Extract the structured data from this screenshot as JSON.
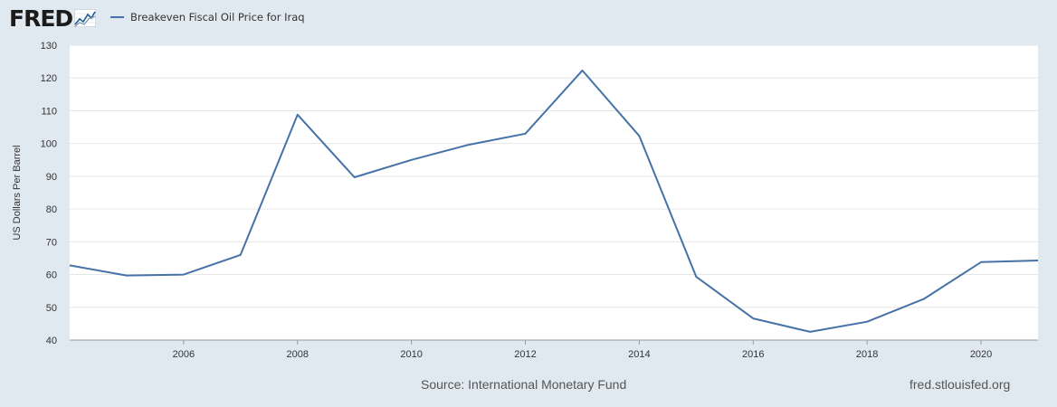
{
  "brand": {
    "logo_text": "FRED",
    "logo_icon": "fred-graph-icon"
  },
  "footer": {
    "source": "Source: International Monetary Fund",
    "url": "fred.stlouisfed.org"
  },
  "colors": {
    "background": "#e1e9f0",
    "plot_background": "#ffffff",
    "series": "#4572a7",
    "grid": "#e6e6e6",
    "text": "#333333"
  },
  "chart_data": {
    "type": "line",
    "title": "",
    "xlabel": "",
    "ylabel": "US Dollars Per Barrel",
    "xlim": [
      2004,
      2021
    ],
    "ylim": [
      40,
      130
    ],
    "yticks": [
      40,
      50,
      60,
      70,
      80,
      90,
      100,
      110,
      120,
      130
    ],
    "xticks": [
      2006,
      2008,
      2010,
      2012,
      2014,
      2016,
      2018,
      2020
    ],
    "grid": true,
    "legend_position": "top-left",
    "series": [
      {
        "name": "Breakeven Fiscal Oil Price for Iraq",
        "color": "#4572a7",
        "x": [
          2004,
          2005,
          2006,
          2007,
          2008,
          2009,
          2010,
          2011,
          2012,
          2013,
          2014,
          2015,
          2016,
          2017,
          2018,
          2019,
          2020,
          2021
        ],
        "y": [
          62.8,
          59.7,
          60.0,
          66.0,
          108.8,
          89.7,
          95.0,
          99.6,
          103.0,
          122.3,
          102.3,
          59.3,
          46.6,
          42.5,
          45.6,
          52.6,
          63.8,
          64.3
        ]
      }
    ]
  }
}
